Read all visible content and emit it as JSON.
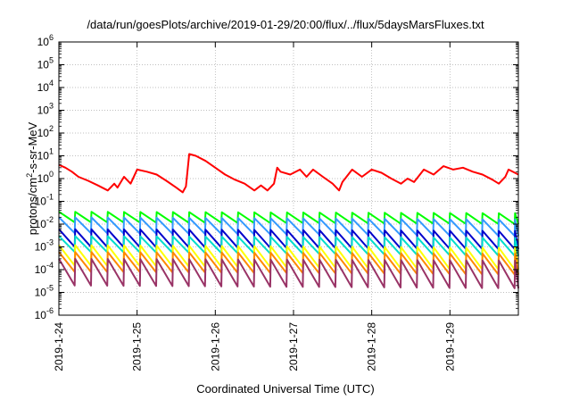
{
  "chart_data": {
    "type": "line",
    "title": "/data/run/goesPlots/archive/2019-01-29/20:00/flux/../flux/5daysMarsFluxes.txt",
    "xlabel": "Coordinated Universal Time (UTC)",
    "ylabel_main": "protons/cm",
    "ylabel_sup": "2",
    "ylabel_rest": "-s-sr-MeV",
    "yscale": "log",
    "ylim": [
      1e-06,
      1000000.0
    ],
    "y_ticks": [
      {
        "base": "10",
        "exp": "-6"
      },
      {
        "base": "10",
        "exp": "-5"
      },
      {
        "base": "10",
        "exp": "-4"
      },
      {
        "base": "10",
        "exp": "-3"
      },
      {
        "base": "10",
        "exp": "-2"
      },
      {
        "base": "10",
        "exp": "-1"
      },
      {
        "base": "10",
        "exp": "0"
      },
      {
        "base": "10",
        "exp": "1"
      },
      {
        "base": "10",
        "exp": "2"
      },
      {
        "base": "10",
        "exp": "3"
      },
      {
        "base": "10",
        "exp": "4"
      },
      {
        "base": "10",
        "exp": "5"
      },
      {
        "base": "10",
        "exp": "6"
      }
    ],
    "xlim": [
      "2019-1-24",
      "2019-1-29 21:00"
    ],
    "x_ticks": [
      "2019-1-24",
      "2019-1-25",
      "2019-1-26",
      "2019-1-27",
      "2019-1-28",
      "2019-1-29"
    ],
    "grid": true,
    "series": [
      {
        "color": "#ff0000",
        "x": [
          "2019-1-24 00:00",
          "2019-1-24 02:00",
          "2019-1-24 04:00",
          "2019-1-24 06:00",
          "2019-1-24 09:00",
          "2019-1-24 12:00",
          "2019-1-24 15:00",
          "2019-1-24 17:00",
          "2019-1-24 18:00",
          "2019-1-24 20:00",
          "2019-1-24 22:00",
          "2019-1-25 00:00",
          "2019-1-25 03:00",
          "2019-1-25 06:00",
          "2019-1-25 09:00",
          "2019-1-25 12:00",
          "2019-1-25 14:00",
          "2019-1-25 15:00",
          "2019-1-25 16:00",
          "2019-1-25 18:00",
          "2019-1-25 21:00",
          "2019-1-26 00:00",
          "2019-1-26 03:00",
          "2019-1-26 06:00",
          "2019-1-26 09:00",
          "2019-1-26 12:00",
          "2019-1-26 14:00",
          "2019-1-26 16:00",
          "2019-1-26 18:00",
          "2019-1-26 19:00",
          "2019-1-26 20:00",
          "2019-1-26 23:00",
          "2019-1-27 02:00",
          "2019-1-27 04:00",
          "2019-1-27 06:00",
          "2019-1-27 09:00",
          "2019-1-27 12:00",
          "2019-1-27 14:00",
          "2019-1-27 15:00",
          "2019-1-27 18:00",
          "2019-1-27 21:00",
          "2019-1-28 00:00",
          "2019-1-28 03:00",
          "2019-1-28 06:00",
          "2019-1-28 09:00",
          "2019-1-28 11:00",
          "2019-1-28 13:00",
          "2019-1-28 16:00",
          "2019-1-28 19:00",
          "2019-1-28 22:00",
          "2019-1-29 01:00",
          "2019-1-29 04:00",
          "2019-1-29 07:00",
          "2019-1-29 10:00",
          "2019-1-29 13:00",
          "2019-1-29 15:00",
          "2019-1-29 17:00",
          "2019-1-29 18:00",
          "2019-1-29 21:00"
        ],
        "y": [
          4,
          3,
          2,
          1.2,
          0.8,
          0.5,
          0.3,
          0.6,
          0.4,
          1.2,
          0.6,
          2.5,
          2,
          1.5,
          0.8,
          0.4,
          0.25,
          0.45,
          12,
          10,
          6,
          3,
          1.5,
          0.9,
          0.6,
          0.3,
          0.5,
          0.3,
          0.6,
          3,
          2,
          1.5,
          2.5,
          1.2,
          2.5,
          1.2,
          0.6,
          0.3,
          0.7,
          2.5,
          1.2,
          2.5,
          1.8,
          1,
          0.6,
          1,
          0.7,
          2.5,
          1.5,
          3.5,
          2.5,
          3,
          2,
          1.5,
          0.9,
          0.6,
          1.2,
          2.5,
          1.5
        ]
      },
      {
        "color": "#00ff00",
        "period_hours": 5,
        "y_high": [
          0.035,
          0.03
        ],
        "y_low": [
          0.012,
          0.01
        ]
      },
      {
        "color": "#3399ff",
        "period_hours": 5,
        "y_high": [
          0.02,
          0.016
        ],
        "y_low": [
          0.004,
          0.003
        ]
      },
      {
        "color": "#0000cc",
        "period_hours": 5,
        "y_high": [
          0.006,
          0.005
        ],
        "y_low": [
          0.001,
          0.0008
        ]
      },
      {
        "color": "#00ddcc",
        "period_hours": 5,
        "y_high": [
          0.003,
          0.0025
        ],
        "y_low": [
          0.0006,
          0.0004
        ]
      },
      {
        "color": "#ffff00",
        "period_hours": 5,
        "y_high": [
          0.0012,
          0.0009
        ],
        "y_low": [
          0.00015,
          0.0001
        ]
      },
      {
        "color": "#ff8800",
        "period_hours": 5,
        "y_high": [
          0.0006,
          0.0005
        ],
        "y_low": [
          8e-05,
          6e-05
        ]
      },
      {
        "color": "#993366",
        "period_hours": 5,
        "y_high": [
          0.0003,
          0.00025
        ],
        "y_low": [
          2e-05,
          1.5e-05
        ]
      }
    ]
  }
}
